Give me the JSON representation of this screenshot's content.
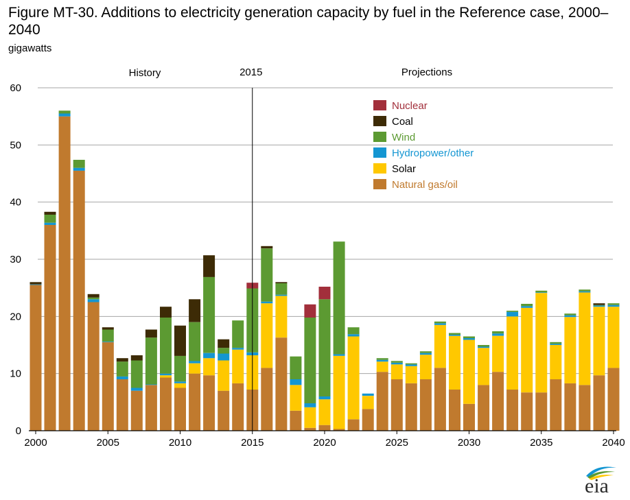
{
  "figure": {
    "title": "Figure MT-30. Additions to electricity generation capacity by fuel in the Reference case, 2000–2040",
    "unit_label": "gigawatts",
    "logo_text": "eia"
  },
  "colors": {
    "Natural gas/oil": "#c07a2e",
    "Solar": "#ffc800",
    "Hydropower/other": "#1496d2",
    "Wind": "#5c9a32",
    "Coal": "#3d2b06",
    "Nuclear": "#a22f3b",
    "grid": "#a6a6a6",
    "divider": "#000000"
  },
  "chart_data": {
    "type": "bar",
    "stacked": true,
    "categories": [
      2000,
      2001,
      2002,
      2003,
      2004,
      2005,
      2006,
      2007,
      2008,
      2009,
      2010,
      2011,
      2012,
      2013,
      2014,
      2015,
      2016,
      2017,
      2018,
      2019,
      2020,
      2021,
      2022,
      2023,
      2024,
      2025,
      2026,
      2027,
      2028,
      2029,
      2030,
      2031,
      2032,
      2033,
      2034,
      2035,
      2036,
      2037,
      2038,
      2039,
      2040
    ],
    "ylim": [
      0,
      60
    ],
    "yticks": [
      0,
      10,
      20,
      30,
      40,
      50,
      60
    ],
    "xticks": [
      2000,
      2005,
      2010,
      2015,
      2020,
      2025,
      2030,
      2035,
      2040
    ],
    "grid": true,
    "legend_position": "top-right",
    "annotations": {
      "history": "History",
      "divider": "2015",
      "projections": "Projections"
    },
    "divider_year": 2015,
    "series": [
      {
        "name": "Natural gas/oil",
        "values": [
          25.5,
          36,
          55,
          45.5,
          22.5,
          15.5,
          9,
          7,
          8,
          9.3,
          7.5,
          10,
          9.7,
          7,
          8.3,
          7.2,
          11,
          16.3,
          3.5,
          0.5,
          1,
          0.3,
          2,
          3.8,
          10.3,
          9,
          8.3,
          9,
          11,
          7.2,
          4.7,
          8,
          10.3,
          7.2,
          6.7,
          6.7,
          9,
          8.3,
          8,
          9.7,
          11
        ]
      },
      {
        "name": "Solar",
        "values": [
          0,
          0,
          0,
          0,
          0,
          0,
          0,
          0,
          0,
          0.4,
          0.8,
          1.8,
          3,
          5.3,
          5.9,
          6,
          11.3,
          7.3,
          4.5,
          3.6,
          4.5,
          12.8,
          14.5,
          2.3,
          1.8,
          2.6,
          3,
          4.3,
          7.5,
          9.4,
          11.2,
          6.5,
          6.3,
          12.8,
          14.8,
          17.4,
          6,
          11.6,
          16.2,
          12,
          10.7
        ]
      },
      {
        "name": "Hydropower/other",
        "values": [
          0.1,
          0.4,
          0.5,
          0.5,
          0.5,
          0.1,
          0.5,
          0.5,
          0.1,
          0.3,
          0.3,
          0.4,
          0.9,
          1.2,
          0.3,
          0.5,
          0.3,
          0.2,
          1,
          0.7,
          0.5,
          0.3,
          0.4,
          0.4,
          0.3,
          0.3,
          0.3,
          0.3,
          0.3,
          0.2,
          0.3,
          0.2,
          0.4,
          0.8,
          0.3,
          0.1,
          0.2,
          0.3,
          0.2,
          0.2,
          0.3
        ]
      },
      {
        "name": "Wind",
        "values": [
          0,
          1.4,
          0.5,
          1.4,
          0.3,
          2.1,
          2.6,
          4.8,
          8.2,
          9.8,
          4.5,
          6.8,
          13.3,
          1,
          4.8,
          11.2,
          9.3,
          2,
          4,
          15,
          17,
          19.7,
          1.2,
          0,
          0.3,
          0.3,
          0.2,
          0.3,
          0.3,
          0.3,
          0.3,
          0.3,
          0.4,
          0.2,
          0.4,
          0.3,
          0.3,
          0.3,
          0.3,
          0.1,
          0.3
        ]
      },
      {
        "name": "Coal",
        "values": [
          0.4,
          0.5,
          0,
          0,
          0.6,
          0.4,
          0.6,
          0.9,
          1.4,
          1.9,
          5.3,
          4,
          3.8,
          1.5,
          0,
          0,
          0.4,
          0.2,
          0,
          0,
          0,
          0,
          0,
          0,
          0,
          0,
          0,
          0,
          0,
          0,
          0,
          0,
          0,
          0,
          0,
          0,
          0,
          0,
          0,
          0.3,
          0
        ]
      },
      {
        "name": "Nuclear",
        "values": [
          0,
          0,
          0,
          0,
          0,
          0,
          0,
          0,
          0,
          0,
          0,
          0,
          0,
          0,
          0,
          1,
          0,
          0,
          0,
          2.3,
          2.2,
          0,
          0,
          0,
          0,
          0,
          0,
          0,
          0,
          0,
          0,
          0,
          0,
          0,
          0,
          0,
          0,
          0,
          0,
          0,
          0
        ]
      }
    ],
    "legend_order": [
      "Nuclear",
      "Coal",
      "Wind",
      "Hydropower/other",
      "Solar",
      "Natural gas/oil"
    ]
  }
}
